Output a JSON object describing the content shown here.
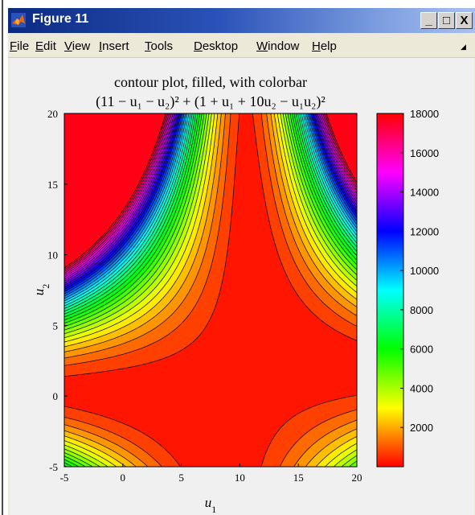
{
  "window": {
    "title": "Figure 11",
    "controls": {
      "minimize": "_",
      "maximize": "□",
      "close": "X"
    },
    "icon": "matlab-logo-icon"
  },
  "menu": [
    {
      "accel": "F",
      "rest": "ile",
      "name": "menu-file"
    },
    {
      "accel": "E",
      "rest": "dit",
      "name": "menu-edit"
    },
    {
      "accel": "V",
      "rest": "iew",
      "name": "menu-view"
    },
    {
      "accel": "I",
      "rest": "nsert",
      "name": "menu-insert"
    },
    {
      "accel": "T",
      "rest": "ools",
      "name": "menu-tools"
    },
    {
      "accel": "D",
      "rest": "esktop",
      "name": "menu-desktop"
    },
    {
      "accel": "W",
      "rest": "indow",
      "name": "menu-window"
    },
    {
      "accel": "H",
      "rest": "elp",
      "name": "menu-help"
    }
  ],
  "chart_data": {
    "type": "contour",
    "title": "contour plot, filled, with colorbar",
    "subtitle": "(11 − u₁ − u₂)² + (1 + u₁ + 10u₂ − u₁u₂)²",
    "xlabel": "u1",
    "ylabel": "u2",
    "xlim": [
      -5,
      20
    ],
    "ylim": [
      -5,
      20
    ],
    "xticks": [
      -5,
      0,
      5,
      10,
      15,
      20
    ],
    "yticks": [
      -5,
      0,
      5,
      10,
      15,
      20
    ],
    "function": "(11 - u1 - u2)^2 + (1 + u1 + 10*u2 - u1*u2)^2",
    "colormap": "hsv",
    "clim": [
      0,
      18000
    ],
    "colorbar_ticks": [
      2000,
      4000,
      6000,
      8000,
      10000,
      12000,
      14000,
      16000,
      18000
    ]
  }
}
